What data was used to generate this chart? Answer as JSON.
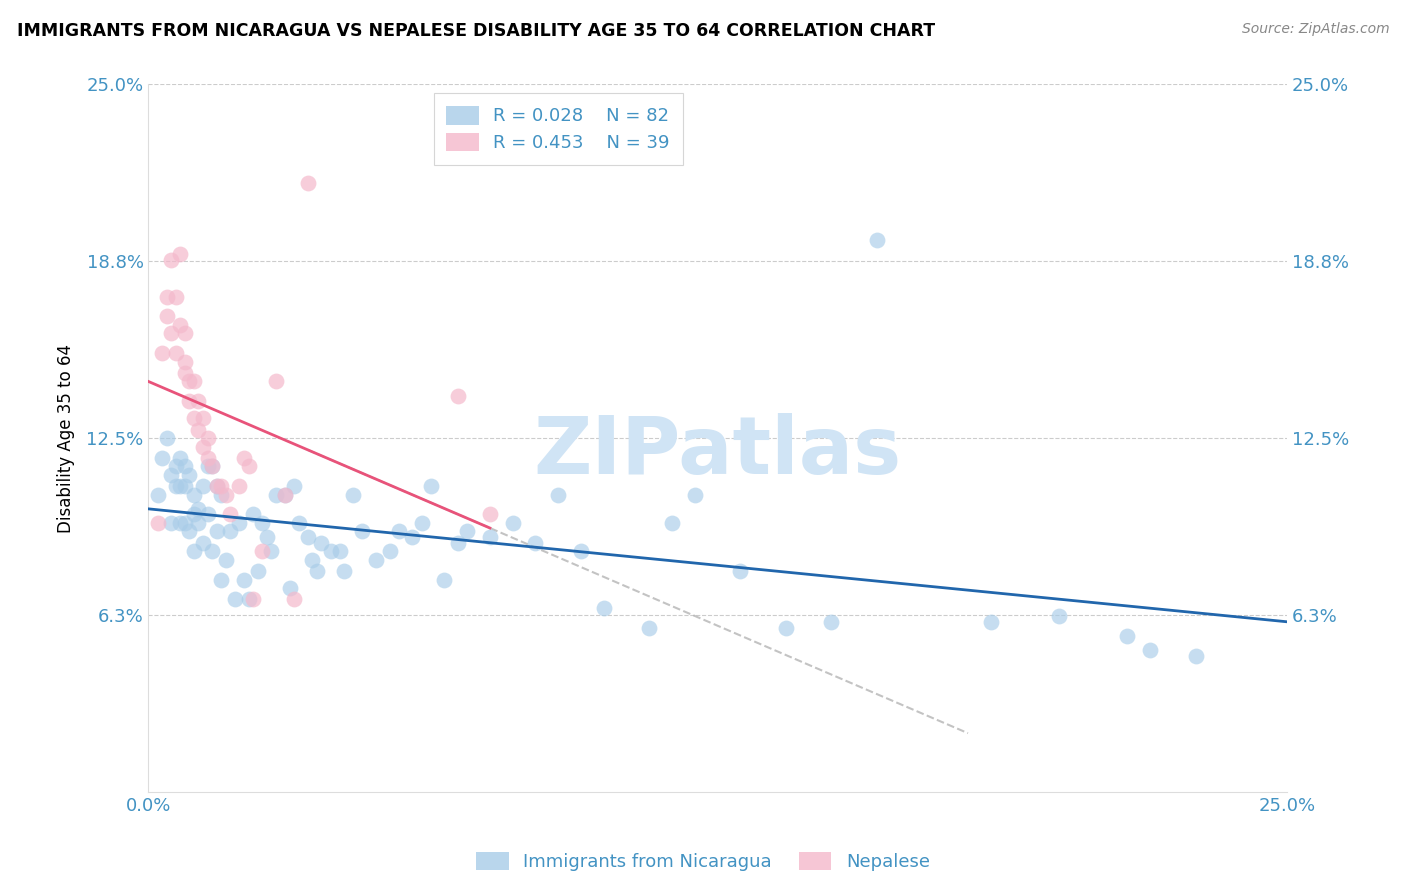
{
  "title": "IMMIGRANTS FROM NICARAGUA VS NEPALESE DISABILITY AGE 35 TO 64 CORRELATION CHART",
  "source": "Source: ZipAtlas.com",
  "ylabel": "Disability Age 35 to 64",
  "xlim": [
    0.0,
    0.25
  ],
  "ylim": [
    0.0,
    0.25
  ],
  "ytick_positions": [
    0.0,
    0.0625,
    0.125,
    0.1875,
    0.25
  ],
  "ytick_labels": [
    "",
    "6.3%",
    "12.5%",
    "18.8%",
    "25.0%"
  ],
  "xtick_positions": [
    0.0,
    0.05,
    0.1,
    0.15,
    0.2,
    0.25
  ],
  "xtick_labels": [
    "0.0%",
    "",
    "",
    "",
    "",
    "25.0%"
  ],
  "legend1_r": "R = 0.028",
  "legend1_n": "N = 82",
  "legend2_r": "R = 0.453",
  "legend2_n": "N = 39",
  "blue_color": "#a8cce8",
  "pink_color": "#f4b8cb",
  "line_blue_color": "#2166ac",
  "line_pink_color": "#e8537a",
  "tick_label_color": "#4393c3",
  "watermark": "ZIPatlas",
  "watermark_color": "#d0e4f5",
  "blue_scatter_x": [
    0.002,
    0.003,
    0.004,
    0.005,
    0.005,
    0.006,
    0.006,
    0.007,
    0.007,
    0.007,
    0.008,
    0.008,
    0.008,
    0.009,
    0.009,
    0.01,
    0.01,
    0.01,
    0.011,
    0.011,
    0.012,
    0.012,
    0.013,
    0.013,
    0.014,
    0.014,
    0.015,
    0.015,
    0.016,
    0.016,
    0.017,
    0.018,
    0.019,
    0.02,
    0.021,
    0.022,
    0.023,
    0.024,
    0.025,
    0.026,
    0.027,
    0.028,
    0.03,
    0.031,
    0.032,
    0.033,
    0.035,
    0.036,
    0.037,
    0.038,
    0.04,
    0.042,
    0.043,
    0.045,
    0.047,
    0.05,
    0.053,
    0.055,
    0.058,
    0.06,
    0.062,
    0.065,
    0.068,
    0.07,
    0.075,
    0.08,
    0.085,
    0.09,
    0.095,
    0.1,
    0.11,
    0.115,
    0.12,
    0.13,
    0.14,
    0.15,
    0.16,
    0.185,
    0.2,
    0.215,
    0.22,
    0.23
  ],
  "blue_scatter_y": [
    0.105,
    0.118,
    0.125,
    0.112,
    0.095,
    0.115,
    0.108,
    0.118,
    0.108,
    0.095,
    0.115,
    0.108,
    0.095,
    0.112,
    0.092,
    0.098,
    0.105,
    0.085,
    0.095,
    0.1,
    0.088,
    0.108,
    0.115,
    0.098,
    0.085,
    0.115,
    0.108,
    0.092,
    0.105,
    0.075,
    0.082,
    0.092,
    0.068,
    0.095,
    0.075,
    0.068,
    0.098,
    0.078,
    0.095,
    0.09,
    0.085,
    0.105,
    0.105,
    0.072,
    0.108,
    0.095,
    0.09,
    0.082,
    0.078,
    0.088,
    0.085,
    0.085,
    0.078,
    0.105,
    0.092,
    0.082,
    0.085,
    0.092,
    0.09,
    0.095,
    0.108,
    0.075,
    0.088,
    0.092,
    0.09,
    0.095,
    0.088,
    0.105,
    0.085,
    0.065,
    0.058,
    0.095,
    0.105,
    0.078,
    0.058,
    0.06,
    0.195,
    0.06,
    0.062,
    0.055,
    0.05,
    0.048
  ],
  "pink_scatter_x": [
    0.002,
    0.003,
    0.004,
    0.004,
    0.005,
    0.005,
    0.006,
    0.006,
    0.007,
    0.007,
    0.008,
    0.008,
    0.008,
    0.009,
    0.009,
    0.01,
    0.01,
    0.011,
    0.011,
    0.012,
    0.012,
    0.013,
    0.013,
    0.014,
    0.015,
    0.016,
    0.017,
    0.018,
    0.02,
    0.021,
    0.022,
    0.023,
    0.025,
    0.028,
    0.03,
    0.032,
    0.035,
    0.068,
    0.075
  ],
  "pink_scatter_y": [
    0.095,
    0.155,
    0.168,
    0.175,
    0.188,
    0.162,
    0.175,
    0.155,
    0.19,
    0.165,
    0.162,
    0.152,
    0.148,
    0.145,
    0.138,
    0.145,
    0.132,
    0.138,
    0.128,
    0.132,
    0.122,
    0.125,
    0.118,
    0.115,
    0.108,
    0.108,
    0.105,
    0.098,
    0.108,
    0.118,
    0.115,
    0.068,
    0.085,
    0.145,
    0.105,
    0.068,
    0.215,
    0.14,
    0.098
  ]
}
